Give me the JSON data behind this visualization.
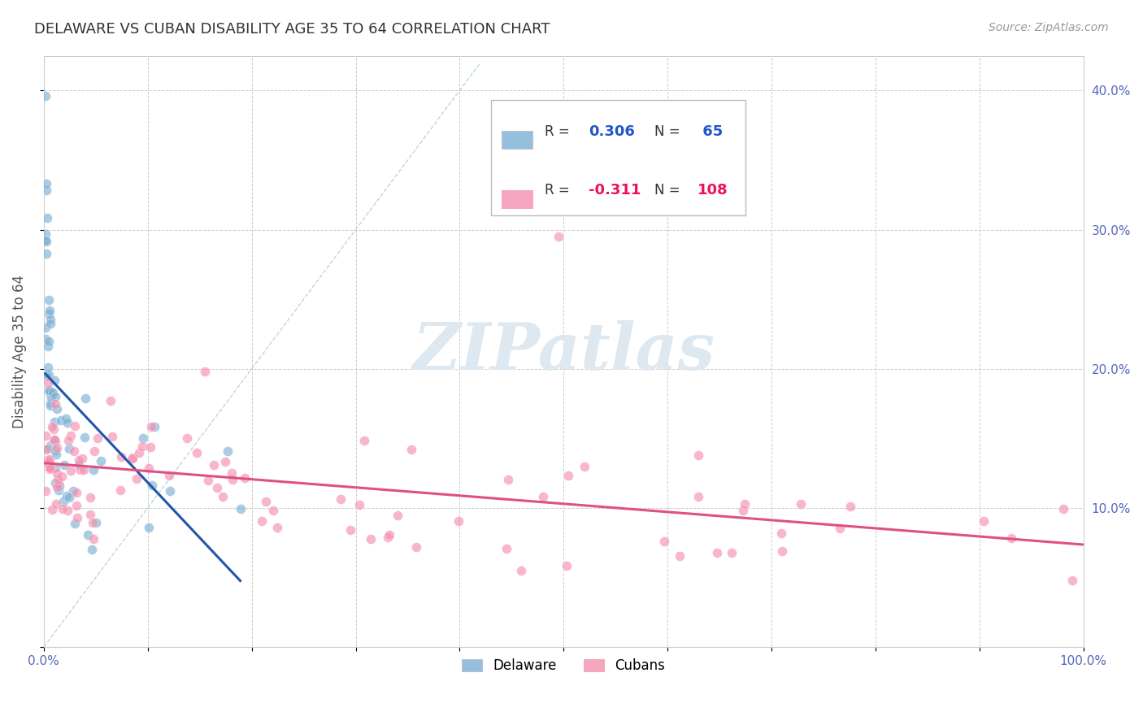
{
  "title": "DELAWARE VS CUBAN DISABILITY AGE 35 TO 64 CORRELATION CHART",
  "source": "Source: ZipAtlas.com",
  "ylabel": "Disability Age 35 to 64",
  "xlim": [
    0.0,
    1.0
  ],
  "ylim": [
    0.0,
    0.425
  ],
  "delaware_R": 0.306,
  "delaware_N": 65,
  "cuban_R": -0.311,
  "cuban_N": 108,
  "delaware_color": "#7BAFD4",
  "cuban_color": "#F48FB1",
  "delaware_line_color": "#2255AA",
  "cuban_line_color": "#E05080",
  "diagonal_color": "#AACCDD",
  "watermark_color": "#DDE8F0",
  "background_color": "#FFFFFF",
  "grid_color": "#CCCCCC",
  "tick_label_color": "#5566BB",
  "title_color": "#333333",
  "source_color": "#999999",
  "ylabel_color": "#555555"
}
